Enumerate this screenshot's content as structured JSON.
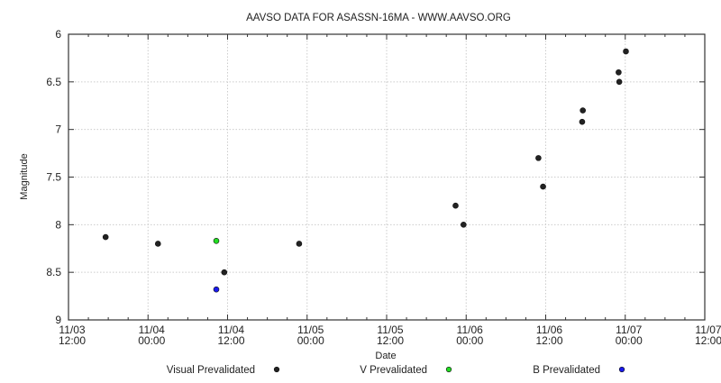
{
  "chart_data": {
    "type": "scatter",
    "title": "AAVSO DATA FOR ASASSN-16MA - WWW.AAVSO.ORG",
    "xlabel": "Date",
    "ylabel": "Magnitude",
    "x_units": "hours since 11/03 12:00",
    "xlim": [
      0,
      96
    ],
    "ylim": [
      6,
      9
    ],
    "y_inverted": true,
    "grid": true,
    "legend_position": "bottom",
    "y_ticks": [
      {
        "value": 6,
        "label": "6"
      },
      {
        "value": 6.5,
        "label": "6.5"
      },
      {
        "value": 7,
        "label": "7"
      },
      {
        "value": 7.5,
        "label": "7.5"
      },
      {
        "value": 8,
        "label": "8"
      },
      {
        "value": 8.5,
        "label": "8.5"
      },
      {
        "value": 9,
        "label": "9"
      }
    ],
    "x_ticks": [
      {
        "value": 0,
        "line1": "11/03",
        "line2": "12:00"
      },
      {
        "value": 12,
        "line1": "11/04",
        "line2": "00:00"
      },
      {
        "value": 24,
        "line1": "11/04",
        "line2": "12:00"
      },
      {
        "value": 36,
        "line1": "11/05",
        "line2": "00:00"
      },
      {
        "value": 48,
        "line1": "11/05",
        "line2": "12:00"
      },
      {
        "value": 60,
        "line1": "11/06",
        "line2": "00:00"
      },
      {
        "value": 72,
        "line1": "11/06",
        "line2": "12:00"
      },
      {
        "value": 84,
        "line1": "11/07",
        "line2": "00:00"
      },
      {
        "value": 96,
        "line1": "11/07",
        "line2": "12:00"
      }
    ],
    "series": [
      {
        "name": "Visual Prevalidated",
        "color": "#222222",
        "points": [
          [
            5.6,
            8.13
          ],
          [
            13.5,
            8.2
          ],
          [
            23.5,
            8.5
          ],
          [
            34.8,
            8.2
          ],
          [
            58.4,
            7.8
          ],
          [
            59.6,
            8.0
          ],
          [
            70.9,
            7.3
          ],
          [
            71.6,
            7.6
          ],
          [
            77.6,
            6.8
          ],
          [
            77.5,
            6.92
          ],
          [
            83.0,
            6.4
          ],
          [
            83.1,
            6.5
          ],
          [
            84.1,
            6.18
          ]
        ]
      },
      {
        "name": "V Prevalidated",
        "color": "#22dd22",
        "points": [
          [
            22.3,
            8.17
          ]
        ]
      },
      {
        "name": "B Prevalidated",
        "color": "#1a1aee",
        "points": [
          [
            22.3,
            8.68
          ]
        ]
      }
    ]
  }
}
